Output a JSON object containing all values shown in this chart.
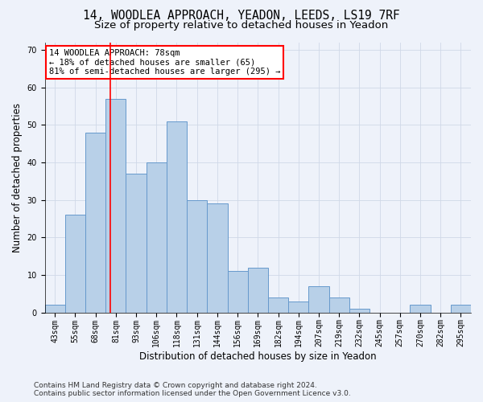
{
  "title_line1": "14, WOODLEA APPROACH, YEADON, LEEDS, LS19 7RF",
  "title_line2": "Size of property relative to detached houses in Yeadon",
  "xlabel": "Distribution of detached houses by size in Yeadon",
  "ylabel": "Number of detached properties",
  "categories": [
    "43sqm",
    "55sqm",
    "68sqm",
    "81sqm",
    "93sqm",
    "106sqm",
    "118sqm",
    "131sqm",
    "144sqm",
    "156sqm",
    "169sqm",
    "182sqm",
    "194sqm",
    "207sqm",
    "219sqm",
    "232sqm",
    "245sqm",
    "257sqm",
    "270sqm",
    "282sqm",
    "295sqm"
  ],
  "values": [
    2,
    26,
    48,
    57,
    37,
    40,
    51,
    30,
    29,
    11,
    12,
    4,
    3,
    7,
    4,
    1,
    0,
    0,
    2,
    0,
    2
  ],
  "bar_color": "#b8d0e8",
  "bar_edge_color": "#6699cc",
  "bar_linewidth": 0.7,
  "grid_color": "#d0d8e8",
  "background_color": "#eef2fa",
  "red_line_x": 2.73,
  "annotation_text": "14 WOODLEA APPROACH: 78sqm\n← 18% of detached houses are smaller (65)\n81% of semi-detached houses are larger (295) →",
  "annotation_box_color": "white",
  "annotation_box_edge": "red",
  "ylim": [
    0,
    72
  ],
  "yticks": [
    0,
    10,
    20,
    30,
    40,
    50,
    60,
    70
  ],
  "footer_line1": "Contains HM Land Registry data © Crown copyright and database right 2024.",
  "footer_line2": "Contains public sector information licensed under the Open Government Licence v3.0.",
  "title_fontsize": 10.5,
  "subtitle_fontsize": 9.5,
  "axis_label_fontsize": 8.5,
  "tick_fontsize": 7,
  "annotation_fontsize": 7.5,
  "footer_fontsize": 6.5
}
